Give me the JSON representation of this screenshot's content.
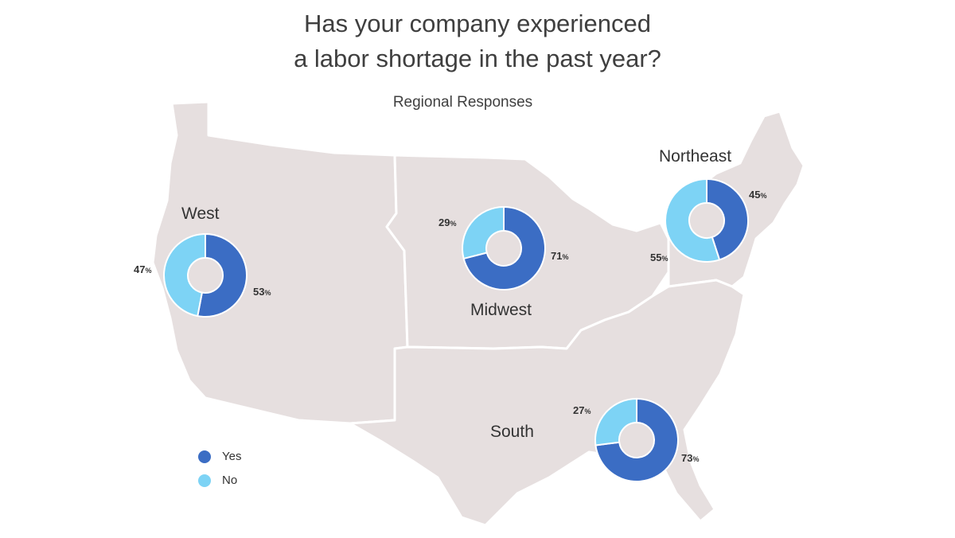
{
  "colors": {
    "yes": "#3b6dc4",
    "no": "#7dd3f5",
    "map_fill": "#e6dfdf",
    "map_border": "#ffffff"
  },
  "chart_data": {
    "type": "pie",
    "title": "Has your company experienced a labor shortage in the past year?",
    "title_lines": [
      "Has your company experienced",
      "a labor shortage in the past year?"
    ],
    "subtitle": "Regional Responses",
    "legend": [
      {
        "name": "Yes",
        "color": "#3b6dc4"
      },
      {
        "name": "No",
        "color": "#7dd3f5"
      }
    ],
    "legend_position": "bottom-left",
    "regions": [
      {
        "name": "West",
        "yes": 53,
        "no": 47,
        "yes_label": "53",
        "no_label": "47"
      },
      {
        "name": "Midwest",
        "yes": 71,
        "no": 29,
        "yes_label": "71",
        "no_label": "29"
      },
      {
        "name": "Northeast",
        "yes": 45,
        "no": 55,
        "yes_label": "45",
        "no_label": "55"
      },
      {
        "name": "South",
        "yes": 73,
        "no": 27,
        "yes_label": "73",
        "no_label": "27"
      }
    ],
    "percent_symbol": "%"
  }
}
